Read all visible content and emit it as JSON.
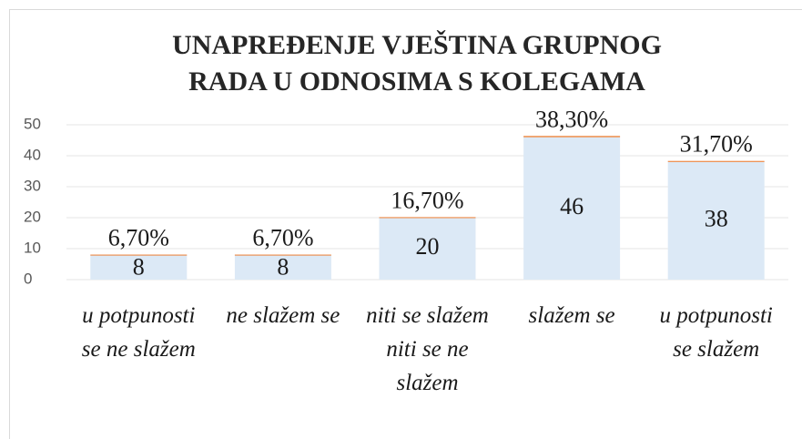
{
  "chart_data": {
    "type": "bar",
    "title": [
      "UNAPREĐENJE VJEŠTINA GRUPNOG",
      "RADA U ODNOSIMA S KOLEGAMA"
    ],
    "categories": [
      "u potpunosti se ne slažem",
      "ne slažem se",
      "niti se slažem niti se ne slažem",
      "slažem se",
      "u potpunosti se slažem"
    ],
    "series": [
      {
        "color": "#dce9f6",
        "values": [
          8,
          8,
          20,
          46,
          38
        ]
      },
      {
        "color": "#ed7d31",
        "values": [
          0.067,
          0.067,
          0.167,
          0.383,
          0.317
        ],
        "value_labels": [
          "6,70%",
          "6,70%",
          "16,70%",
          "38,30%",
          "31,70%"
        ]
      }
    ],
    "ylim": [
      0,
      50
    ],
    "yticks": [
      0,
      10,
      20,
      30,
      40,
      50
    ],
    "grid": true,
    "stacked": true
  }
}
